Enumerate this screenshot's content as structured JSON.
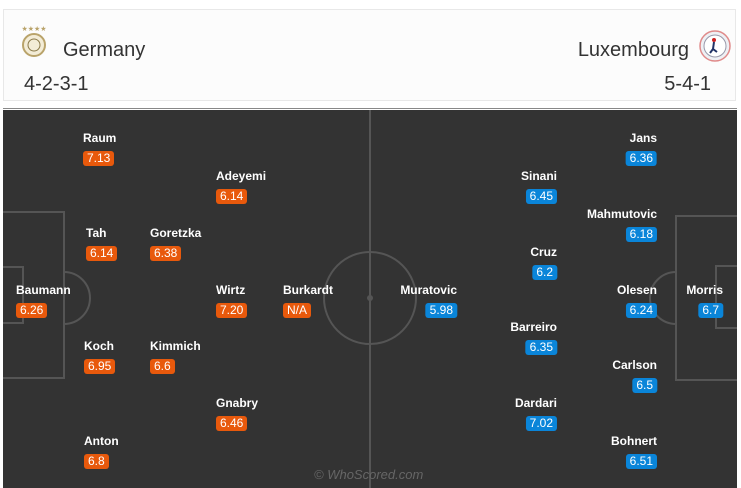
{
  "home": {
    "name": "Germany",
    "formation": "4-2-3-1",
    "color": "#e8590c",
    "players": [
      {
        "name": "Raum",
        "rating": "7.13"
      },
      {
        "name": "Adeyemi",
        "rating": "6.14"
      },
      {
        "name": "Tah",
        "rating": "6.14"
      },
      {
        "name": "Goretzka",
        "rating": "6.38"
      },
      {
        "name": "Baumann",
        "rating": "6.26"
      },
      {
        "name": "Wirtz",
        "rating": "7.20"
      },
      {
        "name": "Burkardt",
        "rating": "N/A"
      },
      {
        "name": "Koch",
        "rating": "6.95"
      },
      {
        "name": "Kimmich",
        "rating": "6.6"
      },
      {
        "name": "Gnabry",
        "rating": "6.46"
      },
      {
        "name": "Anton",
        "rating": "6.8"
      }
    ]
  },
  "away": {
    "name": "Luxembourg",
    "formation": "5-4-1",
    "color": "#0a85d9",
    "players": [
      {
        "name": "Jans",
        "rating": "6.36"
      },
      {
        "name": "Sinani",
        "rating": "6.45"
      },
      {
        "name": "Mahmutovic",
        "rating": "6.18"
      },
      {
        "name": "Cruz",
        "rating": "6.2"
      },
      {
        "name": "Olesen",
        "rating": "6.24"
      },
      {
        "name": "Morris",
        "rating": "6.7"
      },
      {
        "name": "Muratovic",
        "rating": "5.98"
      },
      {
        "name": "Barreiro",
        "rating": "6.35"
      },
      {
        "name": "Carlson",
        "rating": "6.5"
      },
      {
        "name": "Dardari",
        "rating": "7.02"
      },
      {
        "name": "Bohnert",
        "rating": "6.51"
      }
    ]
  },
  "watermark": "© WhoScored.com"
}
